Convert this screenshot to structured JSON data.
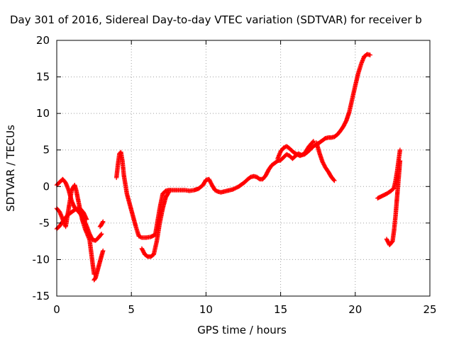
{
  "chart_data": {
    "type": "scatter",
    "title": "Day 301 of 2016, Sidereal Day-to-day VTEC variation (SDTVAR) for receiver b",
    "xlabel": "GPS time / hours",
    "ylabel": "SDTVAR / TECUs",
    "xlim": [
      0,
      25
    ],
    "ylim": [
      -15,
      20
    ],
    "x_ticks": [
      "0",
      "5",
      "10",
      "15",
      "20",
      "25"
    ],
    "y_ticks": [
      "-15",
      "-10",
      "-5",
      "0",
      "5",
      "10",
      "15",
      "20"
    ],
    "grid": true,
    "marker": "+",
    "color": "#ff0000",
    "series": [
      {
        "x": [
          0.0,
          0.2,
          0.4,
          0.6,
          0.8,
          1.0,
          1.2,
          1.4,
          1.6,
          1.8,
          2.0,
          2.2,
          2.4,
          2.6,
          2.8,
          3.0
        ],
        "y": [
          0.2,
          0.6,
          1.0,
          0.5,
          -0.5,
          -2.0,
          -2.9,
          -3.3,
          -3.8,
          -4.5,
          -5.4,
          -6.5,
          -7.3,
          -7.4,
          -7.0,
          -6.5
        ]
      },
      {
        "x": [
          0.0,
          0.2,
          0.4,
          0.6,
          0.8,
          1.0,
          1.2,
          1.3,
          1.5,
          1.7,
          1.9,
          2.0,
          2.2,
          2.4,
          2.5
        ],
        "y": [
          -3.0,
          -3.5,
          -4.5,
          -5.5,
          -3.0,
          -0.5,
          0.2,
          -0.5,
          -2.5,
          -4.5,
          -5.8,
          -6.3,
          -7.3,
          -10.5,
          -12.0
        ]
      },
      {
        "x": [
          0.0,
          0.2,
          0.4,
          0.6,
          0.8,
          1.0,
          1.2,
          1.4,
          1.6,
          1.8,
          2.0
        ],
        "y": [
          -5.8,
          -5.4,
          -4.8,
          -4.2,
          -3.8,
          -3.5,
          -3.2,
          -3.0,
          -3.1,
          -3.6,
          -4.5
        ]
      },
      {
        "x": [
          2.5,
          2.6,
          2.8,
          3.0,
          3.1
        ],
        "y": [
          -12.8,
          -12.5,
          -11.0,
          -9.5,
          -8.8
        ]
      },
      {
        "x": [
          2.9,
          3.0,
          3.1
        ],
        "y": [
          -5.5,
          -5.2,
          -4.8
        ]
      },
      {
        "x": [
          4.0,
          4.1,
          4.2,
          4.3,
          4.4,
          4.5,
          4.7,
          4.9,
          5.1,
          5.3,
          5.5,
          5.7,
          6.0,
          6.3,
          6.6,
          6.9,
          7.1,
          7.3,
          7.5,
          7.7,
          8.0,
          8.3,
          8.6,
          8.9,
          9.2,
          9.5,
          9.8,
          10.0,
          10.2,
          10.4,
          10.6,
          10.8,
          11.0,
          11.2,
          11.4,
          11.6,
          11.8,
          12.0,
          12.2,
          12.4,
          12.6,
          12.8,
          13.0,
          13.2,
          13.4,
          13.6,
          13.8,
          14.0,
          14.2,
          14.4,
          14.6,
          14.8,
          15.0,
          15.2,
          15.4,
          15.6,
          15.8,
          16.0,
          16.2,
          16.4,
          16.6,
          16.8,
          17.0,
          17.2,
          17.4,
          17.6,
          17.8,
          18.0,
          18.2,
          18.4,
          18.6,
          18.8,
          19.0,
          19.2,
          19.4,
          19.6,
          19.8,
          20.0,
          20.2,
          20.4,
          20.6,
          20.8,
          21.0
        ],
        "y": [
          1.2,
          3.0,
          4.5,
          4.7,
          3.5,
          1.5,
          -1.0,
          -2.5,
          -4.0,
          -5.5,
          -6.8,
          -7.0,
          -7.0,
          -6.9,
          -6.6,
          -3.0,
          -1.0,
          -0.6,
          -0.5,
          -0.5,
          -0.5,
          -0.5,
          -0.5,
          -0.6,
          -0.5,
          -0.3,
          0.2,
          0.9,
          1.0,
          0.2,
          -0.5,
          -0.7,
          -0.8,
          -0.7,
          -0.6,
          -0.5,
          -0.4,
          -0.2,
          0.0,
          0.3,
          0.6,
          1.0,
          1.3,
          1.4,
          1.3,
          1.0,
          1.0,
          1.5,
          2.3,
          2.9,
          3.2,
          3.5,
          3.6,
          4.0,
          4.4,
          4.2,
          3.8,
          4.2,
          4.5,
          4.3,
          4.4,
          4.7,
          5.1,
          5.5,
          5.8,
          6.0,
          6.3,
          6.6,
          6.7,
          6.7,
          6.8,
          7.1,
          7.6,
          8.2,
          9.0,
          10.2,
          12.0,
          13.8,
          15.5,
          16.8,
          17.8,
          18.1,
          18.0
        ]
      },
      {
        "x": [
          5.7,
          5.9,
          6.1,
          6.3,
          6.5,
          6.7,
          6.9,
          7.1,
          7.3,
          7.5
        ],
        "y": [
          -8.5,
          -9.3,
          -9.6,
          -9.6,
          -9.3,
          -7.5,
          -5.0,
          -3.0,
          -1.5,
          -0.8
        ]
      },
      {
        "x": [
          14.8,
          15.0,
          15.2,
          15.4,
          15.6,
          15.8,
          16.0,
          16.3,
          16.6,
          16.9,
          17.2
        ],
        "y": [
          3.8,
          4.8,
          5.3,
          5.5,
          5.2,
          4.8,
          4.5,
          4.2,
          4.5,
          5.5,
          6.2
        ]
      },
      {
        "x": [
          17.4,
          17.6,
          17.8,
          18.0,
          18.2,
          18.4,
          18.6
        ],
        "y": [
          6.0,
          4.6,
          3.4,
          2.6,
          2.0,
          1.3,
          0.8
        ]
      },
      {
        "x": [
          21.5,
          21.8,
          22.1,
          22.4,
          22.6,
          22.7,
          22.8,
          22.9,
          23.0
        ],
        "y": [
          -1.6,
          -1.3,
          -1.0,
          -0.6,
          -0.2,
          0.8,
          2.0,
          3.5,
          5.0
        ]
      },
      {
        "x": [
          22.1,
          22.3,
          22.5,
          22.6,
          22.7,
          22.8,
          22.9,
          23.0
        ],
        "y": [
          -7.2,
          -8.0,
          -7.5,
          -6.0,
          -4.0,
          -1.5,
          1.0,
          3.5
        ]
      }
    ]
  }
}
